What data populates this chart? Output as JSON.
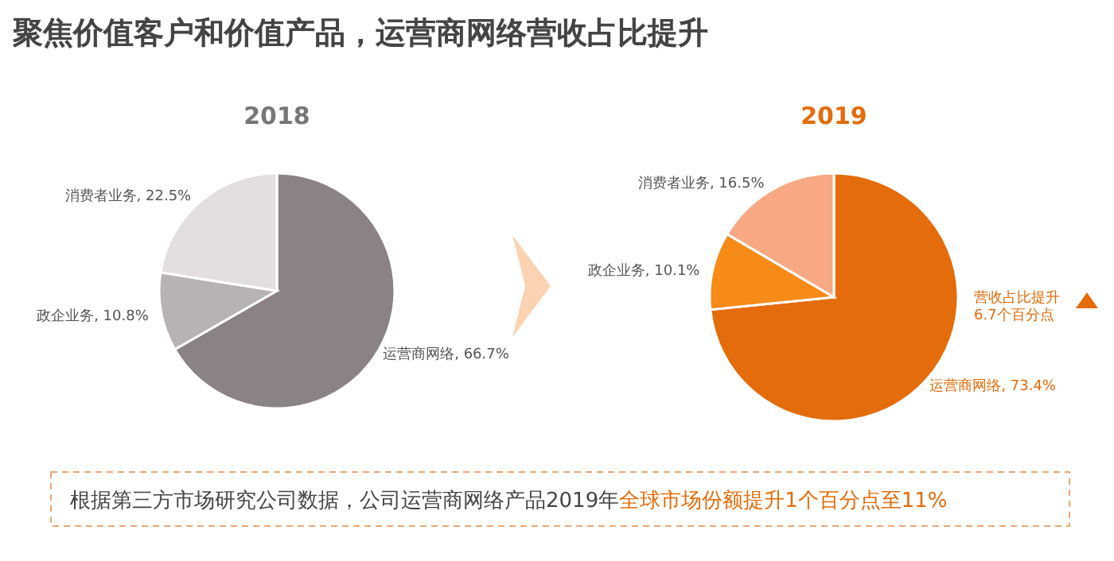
{
  "chart_data": [
    {
      "type": "pie",
      "title": "2018",
      "annotations": [
        "聚焦价值客户和价值产品，运营商网络营收占比提升"
      ],
      "categories": [
        "运营商网络",
        "政企业务",
        "消费者业务"
      ],
      "values": [
        66.7,
        10.8,
        22.5
      ],
      "value_labels": [
        "66.7%",
        "10.8%",
        "22.5%"
      ],
      "colors": [
        "#8a8283",
        "#b8b3b3",
        "#e2dfde"
      ]
    },
    {
      "type": "pie",
      "title": "2019",
      "annotations": [
        "营收占比提升6.7个百分点",
        "根据第三方市场研究公司数据，公司运营商网络产品2019年",
        "全球市场份额提升1个百分点至11%"
      ],
      "categories": [
        "运营商网络",
        "政企业务",
        "消费者业务"
      ],
      "values": [
        73.4,
        10.1,
        16.5
      ],
      "value_labels": [
        "73.4%",
        "10.1%",
        "16.5%"
      ],
      "colors": [
        "#e46c0a",
        "#f68b17",
        "#f8a882"
      ]
    }
  ]
}
